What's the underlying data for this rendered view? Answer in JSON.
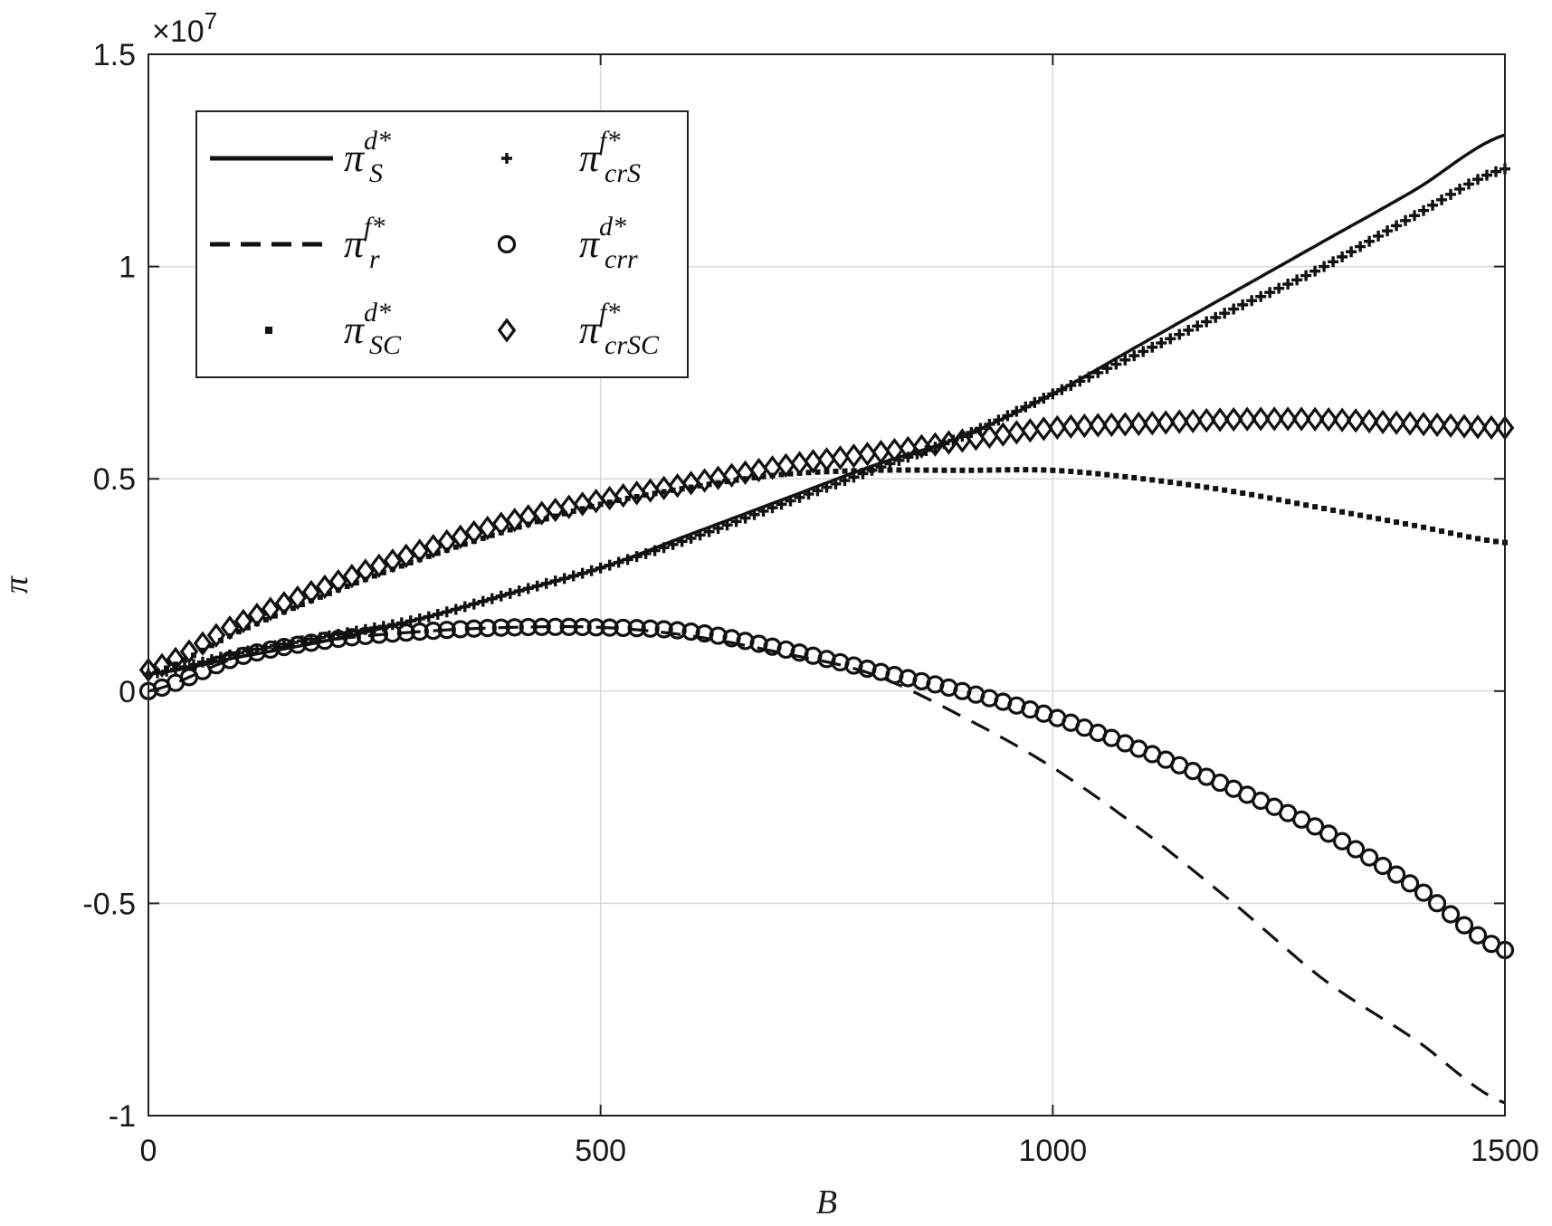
{
  "chart_data": {
    "type": "line",
    "xlabel": "B",
    "ylabel": "π",
    "exponent_label": "×10",
    "exponent_power": "7",
    "xlim": [
      0,
      1500
    ],
    "ylim": [
      -1.0,
      1.5
    ],
    "x_ticks": [
      0,
      500,
      1000,
      1500
    ],
    "x_tick_labels": [
      "0",
      "500",
      "1000",
      "1500"
    ],
    "y_ticks": [
      -1.0,
      -0.5,
      0,
      0.5,
      1.0,
      1.5
    ],
    "y_tick_labels": [
      "-1",
      "-0.5",
      "0",
      "0.5",
      "1",
      "1.5"
    ],
    "grid": true,
    "legend_position": "top-left",
    "x": [
      0,
      100,
      200,
      300,
      400,
      500,
      600,
      700,
      800,
      900,
      1000,
      1100,
      1200,
      1300,
      1400,
      1500
    ],
    "series": [
      {
        "name": "π_S^{d*}",
        "legend_main": "π",
        "legend_sup": "d*",
        "legend_sub": "S",
        "style": "solid",
        "values": [
          0.04,
          0.08,
          0.12,
          0.17,
          0.23,
          0.29,
          0.37,
          0.45,
          0.53,
          0.6,
          0.7,
          0.82,
          0.94,
          1.06,
          1.18,
          1.31
        ]
      },
      {
        "name": "π_r^{f*}",
        "legend_main": "π",
        "legend_sup": "f*",
        "legend_sub": "r",
        "style": "dashed",
        "values": [
          0.0,
          0.08,
          0.12,
          0.14,
          0.15,
          0.15,
          0.13,
          0.09,
          0.04,
          -0.06,
          -0.18,
          -0.33,
          -0.5,
          -0.68,
          -0.82,
          -0.97
        ]
      },
      {
        "name": "π_SC^{d*}",
        "legend_main": "π",
        "legend_sup": "d*",
        "legend_sub": "SC",
        "style": "dotted",
        "values": [
          0.04,
          0.14,
          0.23,
          0.31,
          0.38,
          0.44,
          0.48,
          0.51,
          0.52,
          0.52,
          0.52,
          0.5,
          0.47,
          0.43,
          0.39,
          0.35
        ]
      },
      {
        "name": "π_crS^{f*}",
        "legend_main": "π",
        "legend_sup": "f*",
        "legend_sub": "crS",
        "style": "plus",
        "values": [
          0.04,
          0.09,
          0.13,
          0.17,
          0.23,
          0.29,
          0.36,
          0.44,
          0.52,
          0.6,
          0.7,
          0.8,
          0.9,
          1.0,
          1.12,
          1.23
        ]
      },
      {
        "name": "π_crr^{d*}",
        "legend_main": "π",
        "legend_sup": "d*",
        "legend_sub": "crr",
        "style": "circle",
        "values": [
          0.0,
          0.08,
          0.12,
          0.14,
          0.15,
          0.15,
          0.14,
          0.1,
          0.05,
          0.0,
          -0.06,
          -0.14,
          -0.23,
          -0.33,
          -0.46,
          -0.61
        ]
      },
      {
        "name": "π_crSC^{f*}",
        "legend_main": "π",
        "legend_sup": "f*",
        "legend_sub": "crSC",
        "style": "diamond",
        "values": [
          0.05,
          0.16,
          0.25,
          0.33,
          0.4,
          0.45,
          0.49,
          0.53,
          0.56,
          0.59,
          0.62,
          0.63,
          0.64,
          0.64,
          0.63,
          0.62
        ]
      }
    ]
  }
}
